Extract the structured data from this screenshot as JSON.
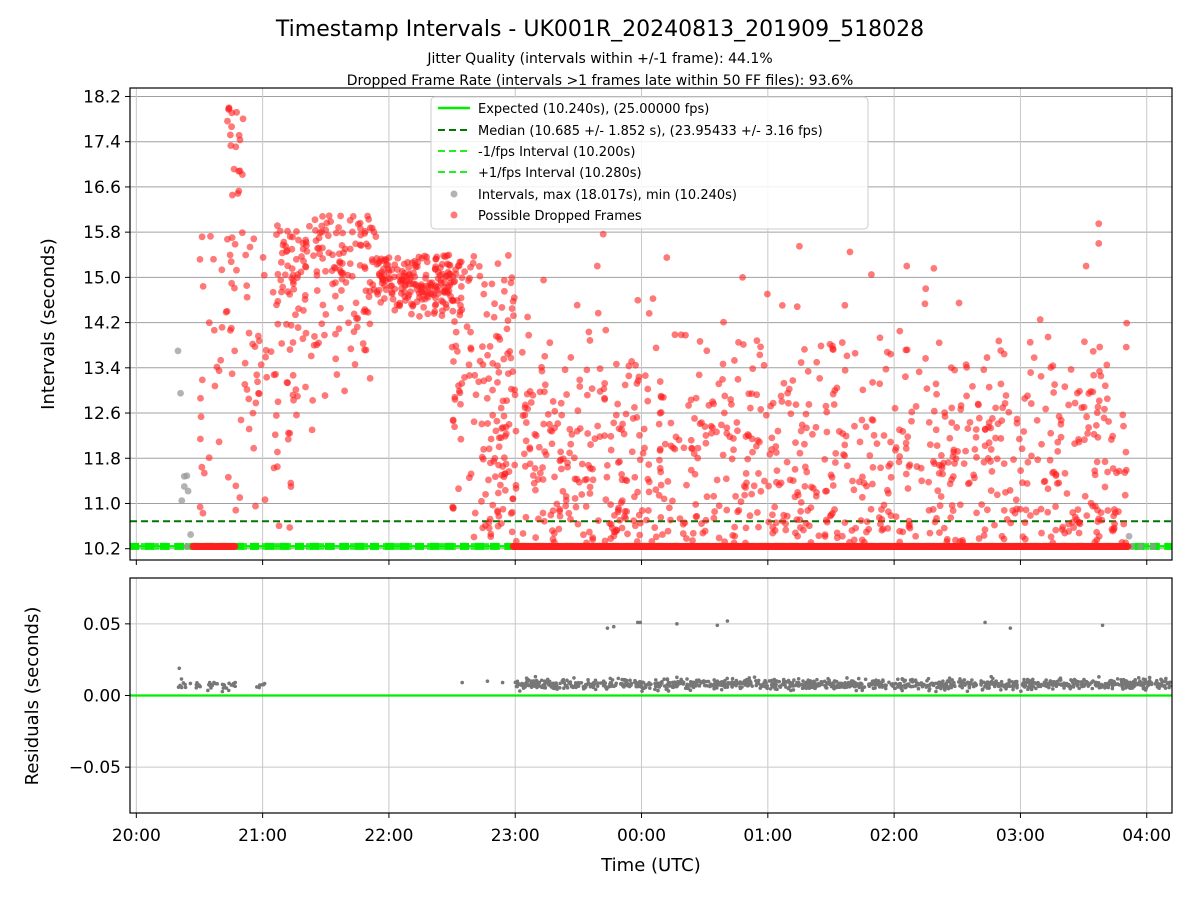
{
  "title": "Timestamp Intervals - UK001R_20240813_201909_518028",
  "subtitle_line1": "Jitter Quality (intervals within +/-1 frame): 44.1%",
  "subtitle_line2": "Dropped Frame Rate (intervals >1 frames late within 50 FF files): 93.6%",
  "colors": {
    "expected": "#00ee00",
    "median": "#007700",
    "interval_lines": "#22ee22",
    "intervals": "#999999",
    "dropped": "#ff2020",
    "residuals": "#777777",
    "grid": "#c8c8c8",
    "grid_top": "#a0a0a0"
  },
  "chart_data": [
    {
      "type": "scatter",
      "panel": "top",
      "ylabel": "Intervals (seconds)",
      "ylim": [
        10.0,
        18.35
      ],
      "yticks": [
        10.2,
        11.0,
        11.8,
        12.6,
        13.4,
        14.2,
        15.0,
        15.8,
        16.6,
        17.4,
        18.2
      ],
      "ytick_labels": [
        "10.2",
        "11.0",
        "11.8",
        "12.6",
        "13.4",
        "14.2",
        "15.0",
        "15.8",
        "16.6",
        "17.4",
        "18.2"
      ],
      "xlim_hours": [
        19.95,
        28.2
      ],
      "grid": true,
      "legend_position": "upper center",
      "legend": [
        {
          "label": "Expected (10.240s), (25.00000 fps)",
          "kind": "line"
        },
        {
          "label": "Median (10.685 +/- 1.852 s), (23.95433 +/- 3.16 fps)",
          "kind": "dashed-dark"
        },
        {
          "label": "-1/fps Interval (10.200s)",
          "kind": "dashed-light"
        },
        {
          "label": "+1/fps Interval (10.280s)",
          "kind": "dashed-light"
        },
        {
          "label": "Intervals, max (18.017s), min (10.240s)",
          "kind": "gray-dot"
        },
        {
          "label": "Possible Dropped Frames",
          "kind": "red-dot"
        }
      ],
      "expected_interval": 10.24,
      "median_interval": 10.685,
      "minus_fps_interval": 10.2,
      "plus_fps_interval": 10.28,
      "series": [
        {
          "name": "Intervals, max (18.017s), min (10.240s)",
          "x_hours": [
            20.33,
            20.35,
            20.36,
            20.38,
            20.4,
            20.41,
            20.43,
            20.45,
            20.38,
            20.4,
            27.86,
            27.88,
            27.95,
            28.05
          ],
          "y": [
            13.7,
            12.95,
            11.05,
            11.48,
            11.49,
            11.22,
            10.45,
            10.24,
            11.3,
            10.24,
            10.42,
            10.24,
            10.24,
            10.24
          ]
        },
        {
          "name": "Possible Dropped Frames",
          "bands": [
            {
              "x_from": 20.5,
              "x_to": 21.4,
              "y_min": 10.55,
              "y_max": 15.8,
              "center": 13.6,
              "spread": 1.9,
              "n": 110
            },
            {
              "x_from": 20.72,
              "x_to": 20.85,
              "y_min": 16.2,
              "y_max": 18.02,
              "center": 17.2,
              "spread": 0.9,
              "n": 20
            },
            {
              "x_from": 21.1,
              "x_to": 21.9,
              "y_min": 12.4,
              "y_max": 16.1,
              "center": 15.1,
              "spread": 0.9,
              "n": 170
            },
            {
              "x_from": 21.9,
              "x_to": 22.6,
              "y_min": 14.3,
              "y_max": 15.4,
              "center": 14.9,
              "spread": 0.35,
              "n": 200
            },
            {
              "x_from": 22.5,
              "x_to": 23.0,
              "y_min": 10.4,
              "y_max": 15.4,
              "center": 13.4,
              "spread": 1.6,
              "n": 110
            },
            {
              "x_from": 22.8,
              "x_to": 23.6,
              "y_min": 10.3,
              "y_max": 15.55,
              "center": 11.6,
              "spread": 1.2,
              "n": 170
            },
            {
              "x_from": 23.6,
              "x_to": 27.85,
              "y_min": 10.3,
              "y_max": 15.9,
              "center": 11.7,
              "spread": 1.25,
              "n": 760
            }
          ],
          "baseline": {
            "x_from": 20.45,
            "x_to": 27.85,
            "y": 10.24,
            "gap_from": 20.78,
            "gap_to": 22.98,
            "n": 900
          },
          "highlights": [
            {
              "x": 25.25,
              "y": 15.55
            },
            {
              "x": 25.82,
              "y": 15.05
            },
            {
              "x": 24.8,
              "y": 15.0
            },
            {
              "x": 23.65,
              "y": 15.2
            },
            {
              "x": 24.2,
              "y": 15.35
            },
            {
              "x": 26.1,
              "y": 15.2
            },
            {
              "x": 27.62,
              "y": 15.95
            },
            {
              "x": 27.62,
              "y": 15.6
            },
            {
              "x": 27.52,
              "y": 15.2
            },
            {
              "x": 26.25,
              "y": 14.8
            },
            {
              "x": 25.65,
              "y": 15.45
            }
          ]
        }
      ]
    },
    {
      "type": "scatter",
      "panel": "bottom",
      "xlabel": "Time (UTC)",
      "ylabel": "Residuals (seconds)",
      "ylim": [
        -0.082,
        0.082
      ],
      "yticks": [
        -0.05,
        0.0,
        0.05
      ],
      "ytick_labels": [
        "−0.05",
        "0.00",
        "0.05"
      ],
      "xticks_hours": [
        20,
        21,
        22,
        23,
        24,
        25,
        26,
        27,
        28
      ],
      "xtick_labels": [
        "20:00",
        "21:00",
        "22:00",
        "23:00",
        "00:00",
        "01:00",
        "02:00",
        "03:00",
        "04:00"
      ],
      "xlim_hours": [
        19.95,
        28.2
      ],
      "grid": true,
      "zero_line": 0.0,
      "series": [
        {
          "name": "Residuals",
          "bands": [
            {
              "x_from": 20.33,
              "x_to": 20.8,
              "center": 0.007,
              "spread": 0.0018,
              "n": 40
            },
            {
              "x_from": 20.95,
              "x_to": 21.05,
              "center": 0.007,
              "spread": 0.0015,
              "n": 6
            },
            {
              "x_from": 23.0,
              "x_to": 28.2,
              "center": 0.0078,
              "spread": 0.0018,
              "n": 1100
            }
          ],
          "outliers_x_hours": [
            20.34,
            22.58,
            22.78,
            22.9,
            23.25,
            23.73,
            23.78,
            23.97,
            23.99,
            24.28,
            24.6,
            24.68,
            26.72,
            26.92,
            27.65
          ],
          "outliers_y": [
            0.019,
            0.009,
            0.01,
            0.009,
            0.01,
            0.047,
            0.048,
            0.051,
            0.051,
            0.05,
            0.049,
            0.052,
            0.051,
            0.047,
            0.049
          ]
        }
      ]
    }
  ]
}
